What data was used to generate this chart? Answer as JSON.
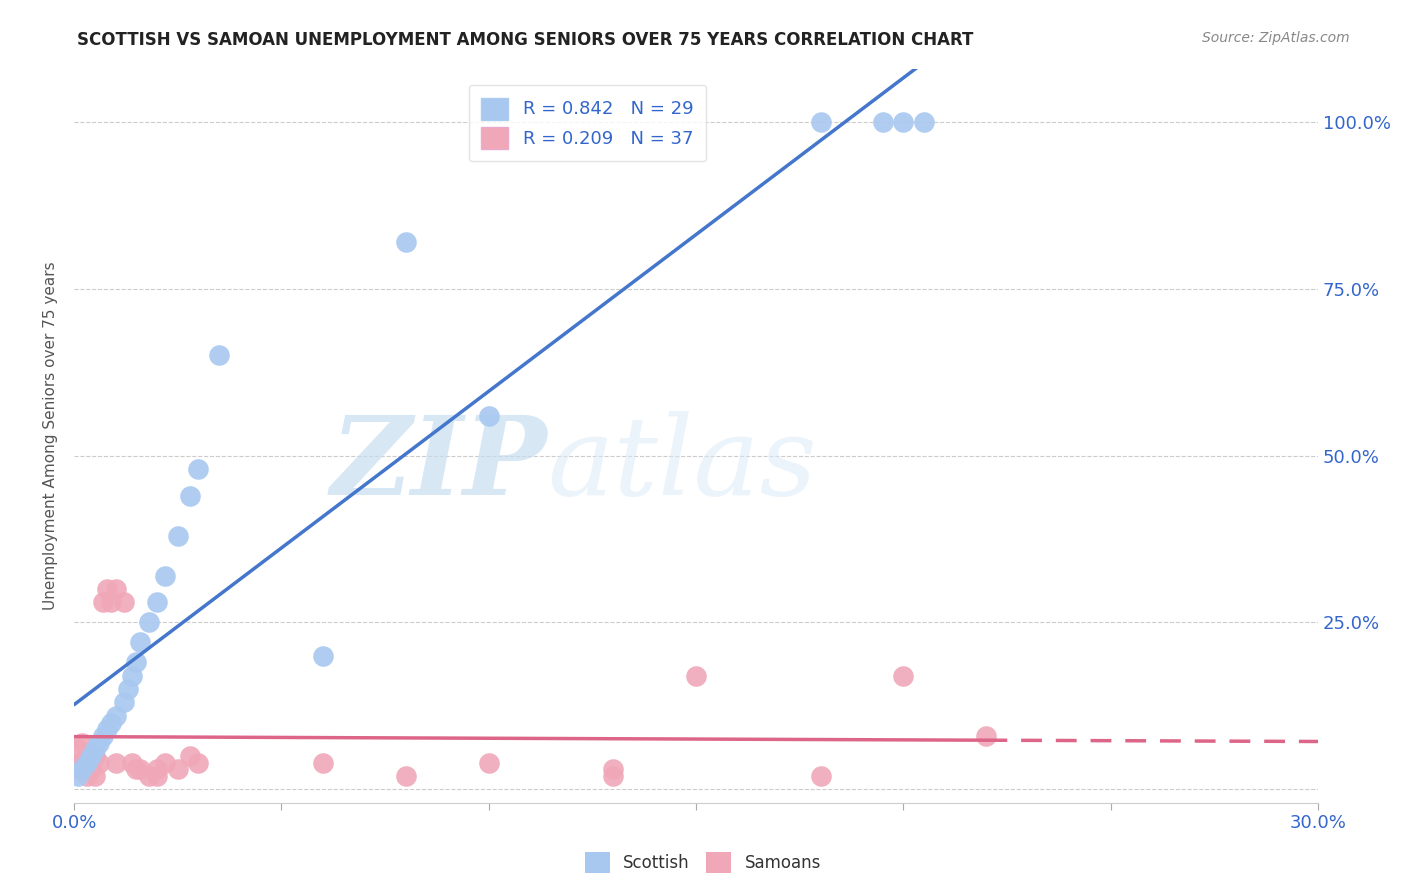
{
  "title": "SCOTTISH VS SAMOAN UNEMPLOYMENT AMONG SENIORS OVER 75 YEARS CORRELATION CHART",
  "source": "Source: ZipAtlas.com",
  "ylabel": "Unemployment Among Seniors over 75 years",
  "xlim": [
    0.0,
    0.3
  ],
  "ylim": [
    -0.02,
    1.08
  ],
  "xticks": [
    0.0,
    0.05,
    0.1,
    0.15,
    0.2,
    0.25,
    0.3
  ],
  "xticklabels": [
    "0.0%",
    "",
    "",
    "",
    "",
    "",
    "30.0%"
  ],
  "ytick_positions": [
    0.0,
    0.25,
    0.5,
    0.75,
    1.0
  ],
  "ytick_labels_right": [
    "",
    "25.0%",
    "50.0%",
    "75.0%",
    "100.0%"
  ],
  "background_color": "#ffffff",
  "grid_color": "#cccccc",
  "watermark_zip": "ZIP",
  "watermark_atlas": "atlas",
  "scottish_color": "#a8c8f0",
  "samoan_color": "#f0a8b8",
  "line_scottish_color": "#4477cc",
  "line_samoan_color": "#dd6688",
  "legend_r_scottish": "R = 0.842",
  "legend_n_scottish": "N = 29",
  "legend_r_samoan": "R = 0.209",
  "legend_n_samoan": "N = 37",
  "scottish_x": [
    0.001,
    0.002,
    0.003,
    0.004,
    0.005,
    0.006,
    0.007,
    0.008,
    0.009,
    0.01,
    0.012,
    0.013,
    0.014,
    0.015,
    0.016,
    0.018,
    0.02,
    0.022,
    0.025,
    0.028,
    0.06,
    0.18,
    0.195,
    0.2,
    0.205,
    0.08,
    0.1,
    0.03,
    0.035
  ],
  "scottish_y": [
    0.02,
    0.03,
    0.04,
    0.05,
    0.06,
    0.07,
    0.08,
    0.09,
    0.1,
    0.11,
    0.13,
    0.15,
    0.17,
    0.19,
    0.22,
    0.25,
    0.28,
    0.32,
    0.38,
    0.44,
    0.2,
    1.0,
    1.0,
    1.0,
    1.0,
    0.82,
    0.56,
    0.48,
    0.65
  ],
  "samoan_x": [
    0.0,
    0.001,
    0.001,
    0.002,
    0.002,
    0.003,
    0.003,
    0.004,
    0.004,
    0.005,
    0.005,
    0.006,
    0.007,
    0.008,
    0.009,
    0.01,
    0.012,
    0.014,
    0.016,
    0.018,
    0.02,
    0.022,
    0.025,
    0.028,
    0.03,
    0.06,
    0.08,
    0.1,
    0.13,
    0.15,
    0.18,
    0.2,
    0.22,
    0.13,
    0.015,
    0.02,
    0.01
  ],
  "samoan_y": [
    0.03,
    0.04,
    0.06,
    0.03,
    0.07,
    0.02,
    0.05,
    0.03,
    0.04,
    0.02,
    0.05,
    0.04,
    0.28,
    0.3,
    0.28,
    0.3,
    0.28,
    0.04,
    0.03,
    0.02,
    0.03,
    0.04,
    0.03,
    0.05,
    0.04,
    0.04,
    0.02,
    0.04,
    0.02,
    0.17,
    0.02,
    0.17,
    0.08,
    0.03,
    0.03,
    0.02,
    0.04
  ]
}
